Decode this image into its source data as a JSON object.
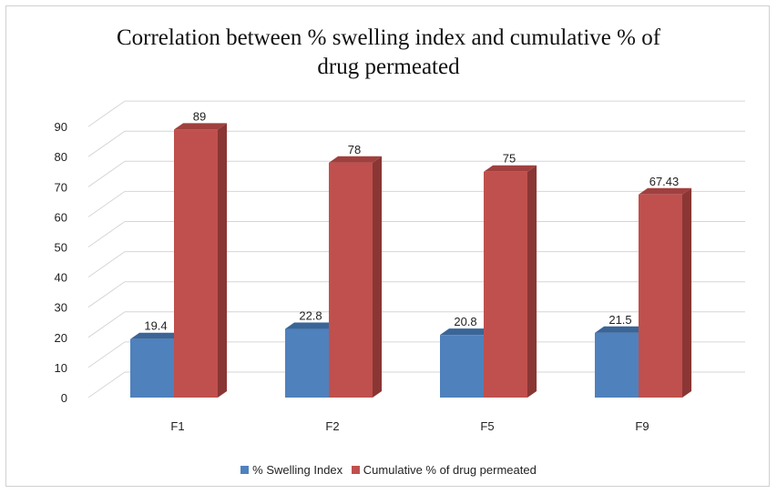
{
  "chart_data": {
    "type": "bar",
    "title_lines": [
      "Correlation between % swelling index and cumulative % of",
      "drug permeated"
    ],
    "categories": [
      "F1",
      "F2",
      "F5",
      "F9"
    ],
    "series": [
      {
        "name": "% Swelling Index",
        "values": [
          19.4,
          22.8,
          20.8,
          21.5
        ],
        "labels": [
          "19.4",
          "22.8",
          "20.8",
          "21.5"
        ],
        "color": "#4f81bd",
        "side_color": "#385d8a",
        "top_color": "#3a6596"
      },
      {
        "name": "Cumulative % of drug permeated",
        "values": [
          89,
          78,
          75,
          67.43
        ],
        "labels": [
          "89",
          "78",
          "75",
          "67.43"
        ],
        "color": "#c0504d",
        "side_color": "#8a3634",
        "top_color": "#a0403e"
      }
    ],
    "ylim": [
      0,
      90
    ],
    "yticks": [
      0,
      10,
      20,
      30,
      40,
      50,
      60,
      70,
      80,
      90
    ],
    "grid": true,
    "legend_position": "bottom",
    "style": "3d-clustered-column"
  }
}
